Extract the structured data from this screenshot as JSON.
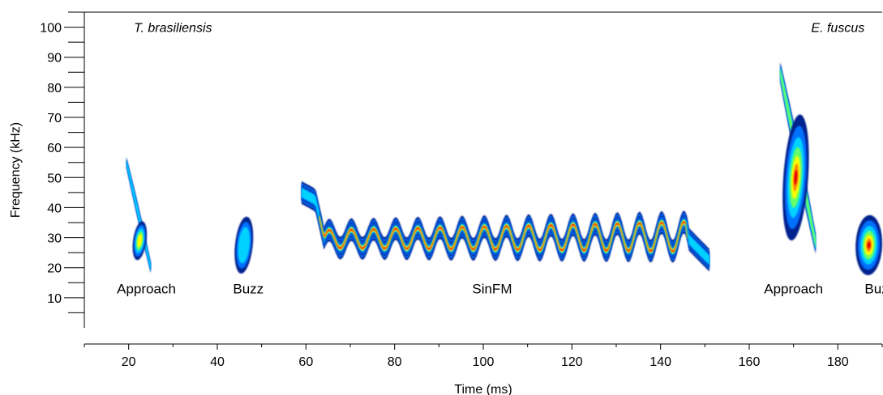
{
  "chart_data": {
    "type": "spectrogram",
    "xlabel": "Time (ms)",
    "ylabel": "Frequency (kHz)",
    "xlim": [
      10,
      190
    ],
    "ylim": [
      0,
      105
    ],
    "x_ticks": [
      20,
      40,
      60,
      80,
      100,
      120,
      140,
      160,
      180
    ],
    "y_ticks": [
      10,
      20,
      30,
      40,
      50,
      60,
      70,
      80,
      90,
      100
    ],
    "y_minor_step": 5,
    "grid": false,
    "colormap": [
      "#00208f",
      "#0070ff",
      "#00d2ff",
      "#66ff66",
      "#ffff00",
      "#ff8c00",
      "#e60000"
    ],
    "species": [
      {
        "name": "T. brasiliensis",
        "x": 30,
        "y": 100
      },
      {
        "name": "E. fuscus",
        "x": 180,
        "y": 100
      }
    ],
    "calls": [
      {
        "label": "Approach",
        "label_x": 24,
        "label_y": 13,
        "species": "T. brasiliensis",
        "time_ms": [
          19.5,
          25
        ],
        "freq_khz": [
          19,
          56
        ]
      },
      {
        "label": "Buzz",
        "label_x": 47,
        "label_y": 13,
        "species": "T. brasiliensis",
        "time_ms": [
          44,
          48
        ],
        "freq_khz": [
          19,
          36
        ]
      },
      {
        "label": "SinFM",
        "label_x": 102,
        "label_y": 13,
        "species": "T. brasiliensis",
        "time_ms": [
          59,
          151
        ],
        "freq_khz": [
          23,
          46
        ]
      },
      {
        "label": "Approach",
        "label_x": 170,
        "label_y": 13,
        "species": "E. fuscus",
        "time_ms": [
          167,
          175
        ],
        "freq_khz": [
          28,
          85
        ]
      },
      {
        "label": "Buzz",
        "label_x": 189.5,
        "label_y": 13,
        "species": "E. fuscus",
        "time_ms": [
          185,
          189
        ],
        "freq_khz": [
          18,
          38
        ]
      }
    ]
  }
}
